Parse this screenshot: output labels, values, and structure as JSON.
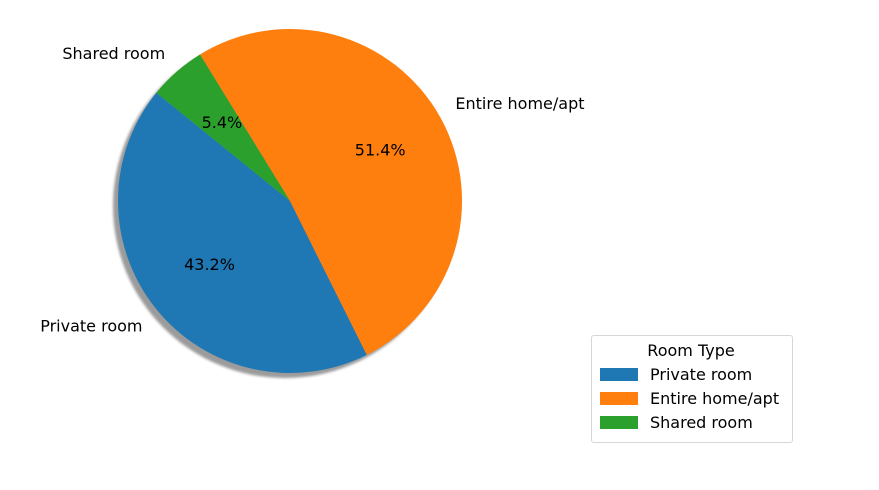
{
  "chart_data": {
    "type": "pie",
    "categories": [
      "Private room",
      "Entire home/apt",
      "Shared room"
    ],
    "values": [
      43.2,
      51.4,
      5.4
    ],
    "value_labels": [
      "43.2%",
      "51.4%",
      "5.4%"
    ],
    "colors": [
      "#1f77b4",
      "#ff7f0e",
      "#2ca02c"
    ],
    "shadow": true,
    "legend": {
      "title": "Room Type",
      "placement": "bottom-right",
      "entries": [
        "Private room",
        "Entire home/apt",
        "Shared room"
      ]
    }
  }
}
